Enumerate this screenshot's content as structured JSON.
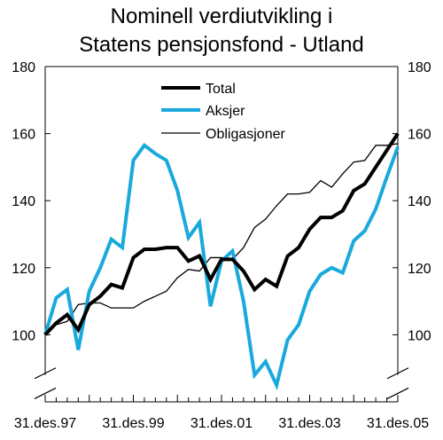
{
  "chart_data": {
    "type": "line",
    "title": "Nominell verdiutvikling i Statens pensjonsfond - Utland",
    "title_lines": [
      "Nominell verdiutvikling i",
      "Statens pensjonsfond - Utland"
    ],
    "xlabel": "",
    "ylabel": "",
    "x_tick_labels": [
      "31.des.97",
      "31.des.99",
      "31.des.01",
      "31.des.03",
      "31.des.05"
    ],
    "x_range": [
      0,
      32
    ],
    "x_tick_positions": [
      0,
      8,
      16,
      24,
      32
    ],
    "ylim": [
      80,
      180
    ],
    "y_tick_values": [
      100,
      120,
      140,
      160,
      180
    ],
    "y_axis_break": true,
    "grid": false,
    "legend_position": "top-center",
    "series": [
      {
        "name": "Total",
        "color": "#000000",
        "stroke_width": 4,
        "values": [
          100,
          103.5,
          106,
          101.5,
          109,
          111.5,
          115,
          114,
          123,
          125.5,
          125.5,
          126,
          126,
          122,
          123.5,
          116.5,
          122.5,
          122.5,
          119,
          113.5,
          116.5,
          114.5,
          123.5,
          126,
          131.5,
          135,
          135,
          137,
          143,
          145,
          150,
          155,
          160
        ]
      },
      {
        "name": "Aksjer",
        "color": "#1aa9dc",
        "stroke_width": 4,
        "values": [
          100,
          111,
          113.5,
          95.5,
          113,
          120,
          128.5,
          126,
          152,
          156.5,
          154,
          152,
          143,
          129,
          133.5,
          108.5,
          122,
          125,
          110,
          88,
          92,
          85,
          98.5,
          103,
          113,
          118,
          120,
          118.5,
          128,
          131,
          137.5,
          147,
          156
        ]
      },
      {
        "name": "Obligasjoner",
        "color": "#000000",
        "stroke_width": 1.3,
        "values": [
          100,
          103,
          104,
          109,
          109.5,
          109.5,
          108,
          108,
          108,
          110,
          111.5,
          113,
          117,
          119.5,
          119,
          123,
          123,
          122.5,
          126,
          132,
          134.5,
          138.5,
          142,
          142,
          142.5,
          146,
          144,
          148,
          151.5,
          152,
          156.5,
          156.5,
          157
        ]
      }
    ]
  }
}
